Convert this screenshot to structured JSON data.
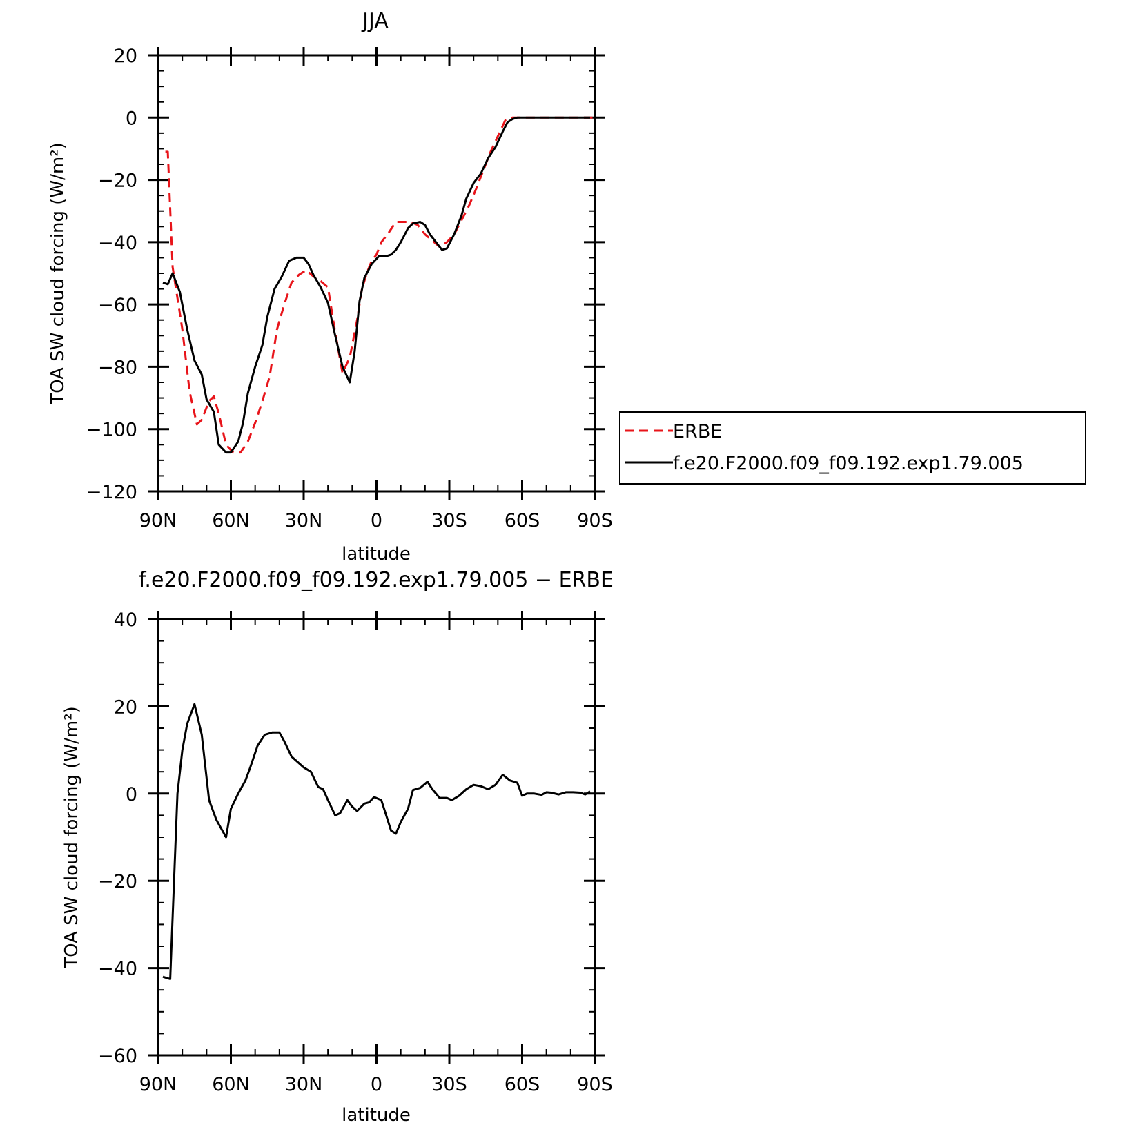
{
  "chart_data": [
    {
      "type": "line",
      "title": "JJA",
      "xlabel": "latitude",
      "ylabel": "TOA SW cloud forcing (W/m²)",
      "xlim": [
        90,
        -90
      ],
      "ylim": [
        -120,
        20
      ],
      "x_ticks": [
        {
          "value": 90,
          "label": "90N"
        },
        {
          "value": 60,
          "label": "60N"
        },
        {
          "value": 30,
          "label": "30N"
        },
        {
          "value": 0,
          "label": "0"
        },
        {
          "value": -30,
          "label": "30S"
        },
        {
          "value": -60,
          "label": "60S"
        },
        {
          "value": -90,
          "label": "90S"
        }
      ],
      "y_ticks": [
        {
          "value": 20,
          "label": "20"
        },
        {
          "value": 0,
          "label": "0"
        },
        {
          "value": -20,
          "label": "−20"
        },
        {
          "value": -40,
          "label": "−40"
        },
        {
          "value": -60,
          "label": "−60"
        },
        {
          "value": -80,
          "label": "−80"
        },
        {
          "value": -100,
          "label": "−100"
        },
        {
          "value": -120,
          "label": "−120"
        }
      ],
      "legend_position": "right",
      "series": [
        {
          "name": "ERBE",
          "color": "#e8141a",
          "dash": "dashed",
          "x": [
            87,
            86,
            84,
            80,
            77,
            74,
            72,
            69,
            67,
            65,
            62,
            59,
            56,
            53,
            50,
            47,
            44,
            41,
            38,
            35,
            32,
            29,
            26,
            23,
            20,
            17,
            14,
            11,
            8,
            6,
            4,
            2,
            0,
            -2,
            -5,
            -8,
            -11,
            -14,
            -17,
            -20,
            -23,
            -26,
            -29,
            -32,
            -35,
            -38,
            -41,
            -44,
            -47,
            -50,
            -53,
            -56,
            -59,
            -62,
            -65,
            -68,
            -71,
            -74,
            -77,
            -80,
            -83,
            -86,
            -89
          ],
          "y": [
            -11,
            -11,
            -48,
            -68,
            -88,
            -98.5,
            -97,
            -91,
            -89.5,
            -95,
            -105,
            -107.5,
            -107.5,
            -104,
            -98,
            -91,
            -83,
            -68,
            -60,
            -53,
            -50.5,
            -49,
            -51,
            -52.5,
            -54.5,
            -69,
            -82,
            -77,
            -65,
            -55,
            -50,
            -46,
            -44,
            -40,
            -37,
            -33.5,
            -33.5,
            -33.5,
            -34.5,
            -37.5,
            -39.5,
            -41.5,
            -40,
            -37.5,
            -33,
            -28.5,
            -23,
            -17,
            -11,
            -6,
            -1,
            0,
            0,
            0,
            0,
            0,
            0,
            0,
            0,
            0,
            0,
            0,
            0
          ]
        },
        {
          "name": "f.e20.F2000.f09_f09.192.exp1.79.005",
          "color": "#000000",
          "dash": "solid",
          "x": [
            88,
            86,
            84,
            81,
            78,
            75,
            72,
            70,
            67,
            65,
            62,
            60,
            57,
            55,
            53,
            50,
            47,
            45,
            42,
            39,
            36,
            33,
            30,
            28,
            26,
            23,
            20,
            17,
            14,
            11,
            9,
            7,
            5,
            2,
            -1,
            -4,
            -6,
            -8,
            -10,
            -13,
            -15,
            -18,
            -20,
            -22,
            -25,
            -27,
            -29,
            -32,
            -35,
            -37,
            -40,
            -43,
            -46,
            -49,
            -52,
            -54,
            -56,
            -58,
            -60,
            -62,
            -65,
            -68,
            -70,
            -72,
            -75,
            -78,
            -81,
            -84,
            -86,
            -88
          ],
          "y": [
            -53,
            -53.5,
            -50,
            -56,
            -68,
            -78,
            -82.5,
            -90.5,
            -94.5,
            -105,
            -107.5,
            -107.5,
            -104,
            -98,
            -88.5,
            -80,
            -73,
            -64,
            -55,
            -51,
            -46,
            -45,
            -45,
            -47,
            -50.5,
            -54.5,
            -59.5,
            -70,
            -80,
            -85,
            -75,
            -59,
            -51.5,
            -47,
            -44.5,
            -44.5,
            -44,
            -42.5,
            -40,
            -35.5,
            -34,
            -33.5,
            -34.5,
            -37.5,
            -40.5,
            -42.5,
            -42,
            -37.5,
            -31.5,
            -26,
            -21,
            -18,
            -13,
            -9.5,
            -4.5,
            -1.5,
            -0.5,
            0,
            0,
            0,
            0,
            0,
            0,
            0,
            0,
            0,
            0,
            0,
            0,
            0
          ]
        }
      ]
    },
    {
      "type": "line",
      "title": "f.e20.F2000.f09_f09.192.exp1.79.005 − ERBE",
      "xlabel": "latitude",
      "ylabel": "TOA SW cloud forcing (W/m²)",
      "xlim": [
        90,
        -90
      ],
      "ylim": [
        -60,
        40
      ],
      "x_ticks": [
        {
          "value": 90,
          "label": "90N"
        },
        {
          "value": 60,
          "label": "60N"
        },
        {
          "value": 30,
          "label": "30N"
        },
        {
          "value": 0,
          "label": "0"
        },
        {
          "value": -30,
          "label": "30S"
        },
        {
          "value": -60,
          "label": "60S"
        },
        {
          "value": -90,
          "label": "90S"
        }
      ],
      "y_ticks": [
        {
          "value": 40,
          "label": "40"
        },
        {
          "value": 20,
          "label": "20"
        },
        {
          "value": 0,
          "label": "0"
        },
        {
          "value": -20,
          "label": "−20"
        },
        {
          "value": -40,
          "label": "−40"
        },
        {
          "value": -60,
          "label": "−60"
        }
      ],
      "series": [
        {
          "color": "#000000",
          "dash": "solid",
          "x": [
            88,
            85,
            82,
            80,
            78,
            75,
            72,
            69,
            66,
            62,
            60,
            57,
            54,
            52,
            49,
            46,
            43,
            40,
            38,
            35,
            33,
            30,
            27,
            24,
            22,
            20,
            17,
            15,
            12,
            10,
            8,
            5,
            3,
            1,
            -2,
            -4,
            -6,
            -8,
            -10,
            -13,
            -15,
            -18,
            -21,
            -23,
            -26,
            -29,
            -31,
            -34,
            -37,
            -40,
            -43,
            -46,
            -49,
            -52,
            -55,
            -58,
            -60,
            -62,
            -65,
            -68,
            -70,
            -72,
            -75,
            -78,
            -81,
            -84,
            -86,
            -88
          ],
          "y": [
            -42,
            -42.5,
            0,
            10,
            16,
            20.5,
            13.5,
            -1.5,
            -6,
            -10,
            -3.5,
            0,
            3,
            6,
            11,
            13.5,
            14,
            14,
            12,
            8.5,
            7.5,
            6,
            5,
            1.5,
            1,
            -1.5,
            -5,
            -4.5,
            -1.5,
            -3,
            -4,
            -2.3,
            -2,
            -0.8,
            -1.5,
            -5,
            -8.5,
            -9.2,
            -6.5,
            -3.5,
            0.8,
            1.3,
            2.7,
            1,
            -1,
            -1,
            -1.5,
            -0.5,
            1,
            2,
            1.7,
            1,
            2,
            4.3,
            3,
            2.5,
            -0.5,
            0,
            0,
            -0.3,
            0.3,
            0.2,
            -0.2,
            0.3,
            0.3,
            0.2,
            -0.2,
            0.5
          ]
        }
      ]
    }
  ]
}
